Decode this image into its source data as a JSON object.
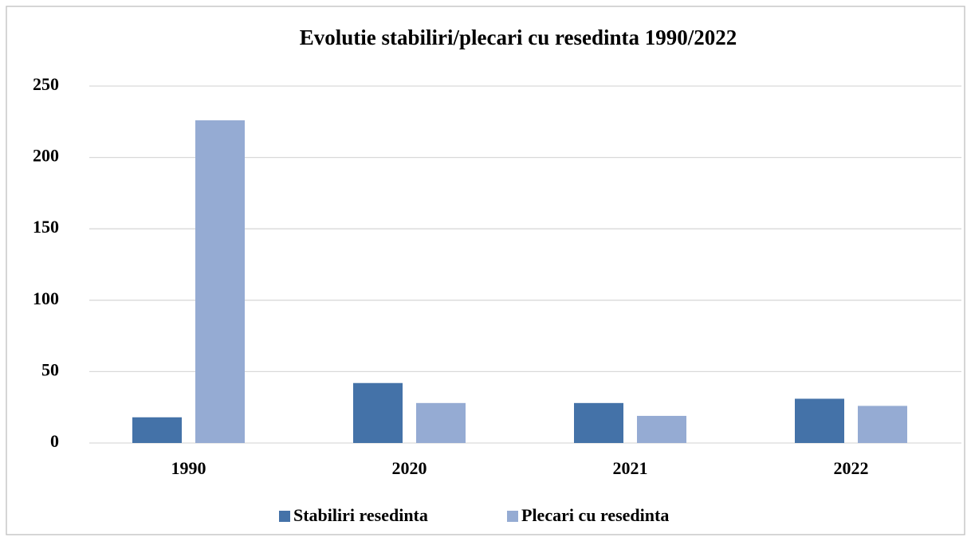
{
  "chart_data": {
    "type": "bar",
    "title": "Evolutie stabiliri/plecari cu resedinta 1990/2022",
    "categories": [
      "1990",
      "2020",
      "2021",
      "2022"
    ],
    "series": [
      {
        "name": "Stabiliri resedinta",
        "color": "#4472a8",
        "values": [
          18,
          42,
          28,
          31
        ]
      },
      {
        "name": "Plecari cu resedinta",
        "color": "#95abd3",
        "values": [
          226,
          28,
          19,
          26
        ]
      }
    ],
    "ylim": [
      0,
      250
    ],
    "yticks": [
      0,
      50,
      100,
      150,
      200,
      250
    ],
    "grid": true,
    "legend": "bottom"
  }
}
